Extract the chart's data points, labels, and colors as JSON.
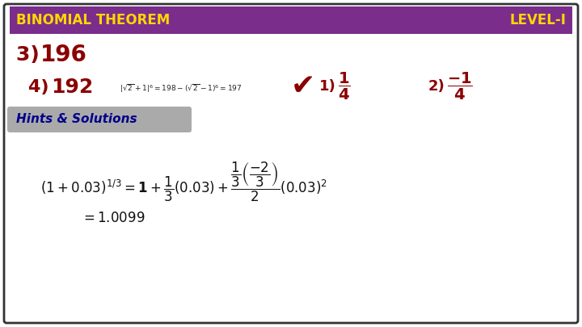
{
  "title_left": "BINOMIAL THEOREM",
  "title_right": "LEVEL-I",
  "header_bg": "#7B2D8B",
  "header_text_color": "#FFD700",
  "outer_bg": "#FFFFFF",
  "border_color": "#333333",
  "answer_color": "#8B0000",
  "hints_bg": "#AAAAAA",
  "hints_text_color": "#00008B",
  "check_mark_color": "#8B0000"
}
